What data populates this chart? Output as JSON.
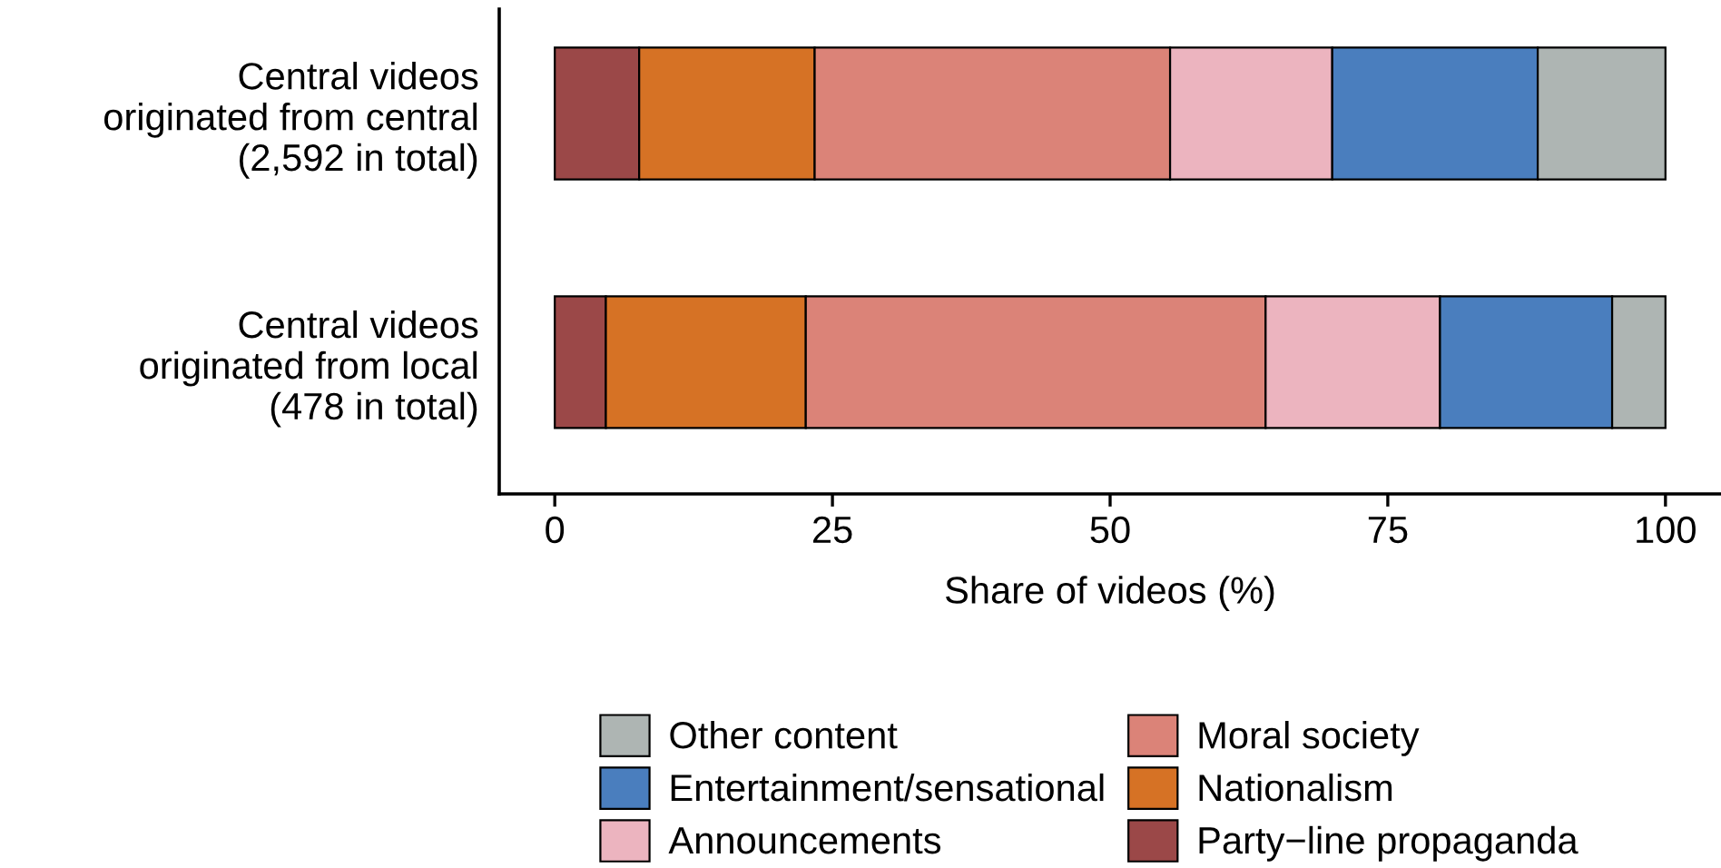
{
  "chart_data": {
    "type": "bar",
    "orientation": "horizontal",
    "stacked": true,
    "categories": [
      "Central videos\noriginated from central\n(2,592 in total)",
      "Central videos\noriginated from local\n(478 in total)"
    ],
    "xlabel": "Share of videos (%)",
    "xlim": [
      -5,
      105
    ],
    "xticks": [
      0,
      25,
      50,
      75,
      100
    ],
    "series": [
      {
        "name": "Party−line propaganda",
        "color": "#9b4848",
        "values": [
          7.6,
          4.6
        ]
      },
      {
        "name": "Nationalism",
        "color": "#d67225",
        "values": [
          15.8,
          18.0
        ]
      },
      {
        "name": "Moral society",
        "color": "#db8378",
        "values": [
          32.0,
          41.4
        ]
      },
      {
        "name": "Announcements",
        "color": "#ecb4bf",
        "values": [
          14.6,
          15.7
        ]
      },
      {
        "name": "Entertainment/sensational",
        "color": "#4a7ebe",
        "values": [
          18.5,
          15.5
        ]
      },
      {
        "name": "Other content",
        "color": "#aeb5b3",
        "values": [
          11.5,
          4.8
        ]
      }
    ],
    "legend": "bottom",
    "grid": false
  }
}
